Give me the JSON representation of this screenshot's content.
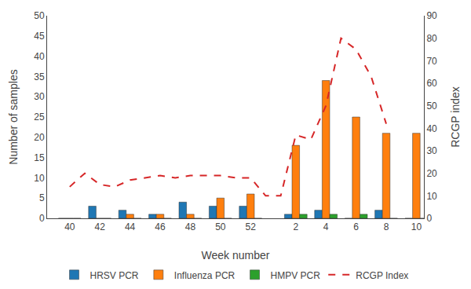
{
  "chart_data": {
    "type": "bar",
    "xlabel": "Week number",
    "ylabel": "Number of samples",
    "y2label": "RCGP index",
    "categories": [
      "40",
      null,
      "42",
      null,
      "44",
      null,
      "46",
      null,
      "48",
      null,
      "50",
      null,
      "52",
      null,
      null,
      "2",
      null,
      "4",
      null,
      "6",
      null,
      "8",
      null,
      "10"
    ],
    "series": [
      {
        "name": "HRSV PCR",
        "type": "bar",
        "values": [
          0,
          null,
          3,
          null,
          2,
          null,
          1,
          null,
          4,
          null,
          3,
          null,
          3,
          null,
          null,
          1,
          null,
          2,
          null,
          0,
          null,
          2,
          null,
          0
        ]
      },
      {
        "name": "Influenza PCR",
        "type": "bar",
        "values": [
          0,
          null,
          0,
          null,
          1,
          null,
          1,
          null,
          1,
          null,
          5,
          null,
          6,
          null,
          null,
          18,
          null,
          34,
          null,
          25,
          null,
          21,
          null,
          21
        ]
      },
      {
        "name": "HMPV PCR",
        "type": "bar",
        "values": [
          0,
          null,
          0,
          null,
          0,
          null,
          0,
          null,
          0,
          null,
          0,
          null,
          0,
          null,
          null,
          1,
          null,
          1,
          null,
          1,
          null,
          0,
          null,
          0
        ]
      },
      {
        "name": "RCGP Index",
        "type": "line",
        "axis": "y2",
        "line_style": "dashed",
        "values": [
          14,
          20,
          15,
          14,
          17,
          18,
          19,
          18,
          19,
          19,
          19,
          18,
          18,
          10,
          10,
          37,
          35,
          50,
          80,
          75,
          63,
          42,
          null,
          null
        ]
      }
    ],
    "ylim": [
      0,
      50
    ],
    "yticks": [
      0,
      5,
      10,
      15,
      20,
      25,
      30,
      35,
      40,
      45,
      50
    ],
    "y2lim": [
      0,
      90
    ],
    "y2ticks": [
      0,
      10,
      20,
      30,
      40,
      50,
      60,
      70,
      80,
      90
    ],
    "grid": false,
    "legend": "bottom"
  }
}
